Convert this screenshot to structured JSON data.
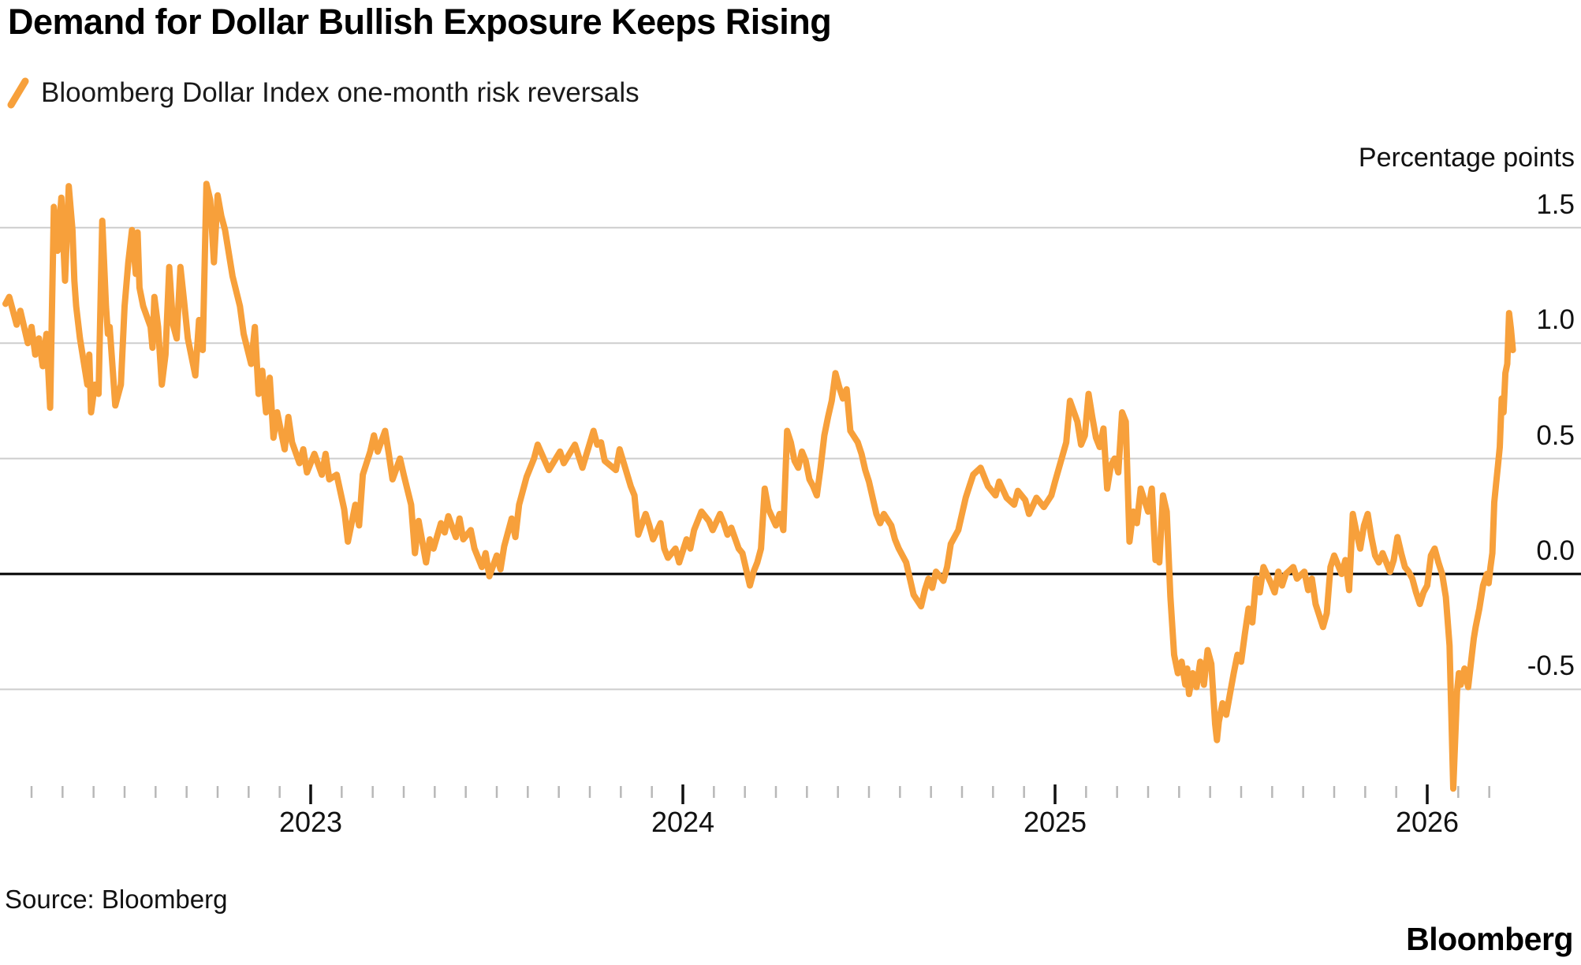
{
  "header": {
    "title": "Demand for Dollar Bullish Exposure Keeps Rising",
    "legend": {
      "label": "Bloomberg Dollar Index one-month risk reversals",
      "marker_color": "#F7A03B"
    }
  },
  "footer": {
    "source": "Source: Bloomberg",
    "brand": "Bloomberg"
  },
  "colors": {
    "line": "#F7A03B",
    "gridline": "#CDCDCD",
    "zero_line": "#000000",
    "minor_tick": "#B8B8B8",
    "major_tick": "#111111",
    "text": "#111111"
  },
  "chart_data": {
    "type": "line",
    "title": "Demand for Dollar Bullish Exposure Keeps Rising",
    "series_name": "Bloomberg Dollar Index one-month risk reversals",
    "ylabel": "Percentage points",
    "legend_position": "top-left",
    "grid": "horizontal",
    "x_axis": {
      "labels": [
        "2023",
        "2024",
        "2025",
        "2026"
      ],
      "major_ticks": [
        2023,
        2024,
        2025,
        2026
      ],
      "minor_tick_start": 2022.25,
      "minor_tick_end": 2026.167,
      "minor_ticks_per_year": 12,
      "range": [
        2022.17,
        2026.28
      ]
    },
    "y_axis": {
      "label": "Percentage points",
      "ticks": [
        1.5,
        1.0,
        0.5,
        0.0,
        -0.5
      ],
      "tick_labels": [
        "1.5",
        "1.0",
        "0.5",
        "0.0",
        "-0.5"
      ],
      "range": [
        -0.95,
        1.75
      ],
      "zero_line": true
    },
    "points": [
      [
        2022.18,
        1.17
      ],
      [
        2022.19,
        1.2
      ],
      [
        2022.21,
        1.08
      ],
      [
        2022.22,
        1.14
      ],
      [
        2022.24,
        1.0
      ],
      [
        2022.25,
        1.07
      ],
      [
        2022.26,
        0.95
      ],
      [
        2022.27,
        1.02
      ],
      [
        2022.28,
        0.9
      ],
      [
        2022.29,
        1.04
      ],
      [
        2022.3,
        0.72
      ],
      [
        2022.31,
        1.59
      ],
      [
        2022.32,
        1.4
      ],
      [
        2022.33,
        1.63
      ],
      [
        2022.335,
        1.45
      ],
      [
        2022.34,
        1.27
      ],
      [
        2022.35,
        1.68
      ],
      [
        2022.36,
        1.49
      ],
      [
        2022.365,
        1.27
      ],
      [
        2022.37,
        1.16
      ],
      [
        2022.38,
        1.02
      ],
      [
        2022.4,
        0.82
      ],
      [
        2022.405,
        0.95
      ],
      [
        2022.41,
        0.7
      ],
      [
        2022.42,
        0.82
      ],
      [
        2022.43,
        0.78
      ],
      [
        2022.44,
        1.53
      ],
      [
        2022.45,
        1.16
      ],
      [
        2022.455,
        1.04
      ],
      [
        2022.46,
        1.07
      ],
      [
        2022.475,
        0.73
      ],
      [
        2022.49,
        0.82
      ],
      [
        2022.5,
        1.16
      ],
      [
        2022.51,
        1.35
      ],
      [
        2022.52,
        1.49
      ],
      [
        2022.53,
        1.3
      ],
      [
        2022.535,
        1.48
      ],
      [
        2022.54,
        1.24
      ],
      [
        2022.55,
        1.16
      ],
      [
        2022.57,
        1.07
      ],
      [
        2022.575,
        0.98
      ],
      [
        2022.58,
        1.2
      ],
      [
        2022.59,
        1.07
      ],
      [
        2022.6,
        0.82
      ],
      [
        2022.61,
        0.95
      ],
      [
        2022.62,
        1.33
      ],
      [
        2022.63,
        1.08
      ],
      [
        2022.64,
        1.02
      ],
      [
        2022.65,
        1.33
      ],
      [
        2022.66,
        1.18
      ],
      [
        2022.67,
        1.02
      ],
      [
        2022.69,
        0.86
      ],
      [
        2022.7,
        1.1
      ],
      [
        2022.71,
        0.97
      ],
      [
        2022.72,
        1.69
      ],
      [
        2022.73,
        1.62
      ],
      [
        2022.74,
        1.35
      ],
      [
        2022.75,
        1.64
      ],
      [
        2022.76,
        1.55
      ],
      [
        2022.77,
        1.49
      ],
      [
        2022.79,
        1.29
      ],
      [
        2022.81,
        1.16
      ],
      [
        2022.82,
        1.04
      ],
      [
        2022.84,
        0.91
      ],
      [
        2022.85,
        1.07
      ],
      [
        2022.86,
        0.78
      ],
      [
        2022.87,
        0.88
      ],
      [
        2022.88,
        0.7
      ],
      [
        2022.89,
        0.85
      ],
      [
        2022.9,
        0.59
      ],
      [
        2022.91,
        0.7
      ],
      [
        2022.93,
        0.54
      ],
      [
        2022.94,
        0.68
      ],
      [
        2022.95,
        0.57
      ],
      [
        2022.97,
        0.48
      ],
      [
        2022.98,
        0.54
      ],
      [
        2022.99,
        0.44
      ],
      [
        2023.01,
        0.52
      ],
      [
        2023.03,
        0.43
      ],
      [
        2023.04,
        0.52
      ],
      [
        2023.05,
        0.41
      ],
      [
        2023.07,
        0.43
      ],
      [
        2023.09,
        0.28
      ],
      [
        2023.1,
        0.14
      ],
      [
        2023.12,
        0.3
      ],
      [
        2023.13,
        0.21
      ],
      [
        2023.14,
        0.43
      ],
      [
        2023.16,
        0.53
      ],
      [
        2023.17,
        0.6
      ],
      [
        2023.18,
        0.53
      ],
      [
        2023.2,
        0.62
      ],
      [
        2023.21,
        0.52
      ],
      [
        2023.22,
        0.41
      ],
      [
        2023.24,
        0.5
      ],
      [
        2023.25,
        0.43
      ],
      [
        2023.27,
        0.3
      ],
      [
        2023.28,
        0.09
      ],
      [
        2023.29,
        0.23
      ],
      [
        2023.31,
        0.05
      ],
      [
        2023.32,
        0.15
      ],
      [
        2023.33,
        0.11
      ],
      [
        2023.35,
        0.22
      ],
      [
        2023.36,
        0.18
      ],
      [
        2023.37,
        0.25
      ],
      [
        2023.39,
        0.16
      ],
      [
        2023.4,
        0.24
      ],
      [
        2023.41,
        0.15
      ],
      [
        2023.43,
        0.19
      ],
      [
        2023.44,
        0.11
      ],
      [
        2023.46,
        0.03
      ],
      [
        2023.47,
        0.09
      ],
      [
        2023.48,
        -0.01
      ],
      [
        2023.5,
        0.08
      ],
      [
        2023.51,
        0.02
      ],
      [
        2023.52,
        0.12
      ],
      [
        2023.54,
        0.24
      ],
      [
        2023.55,
        0.16
      ],
      [
        2023.56,
        0.3
      ],
      [
        2023.58,
        0.42
      ],
      [
        2023.6,
        0.5
      ],
      [
        2023.61,
        0.56
      ],
      [
        2023.64,
        0.45
      ],
      [
        2023.67,
        0.53
      ],
      [
        2023.68,
        0.48
      ],
      [
        2023.71,
        0.56
      ],
      [
        2023.73,
        0.46
      ],
      [
        2023.76,
        0.62
      ],
      [
        2023.77,
        0.56
      ],
      [
        2023.78,
        0.57
      ],
      [
        2023.79,
        0.49
      ],
      [
        2023.82,
        0.45
      ],
      [
        2023.83,
        0.54
      ],
      [
        2023.86,
        0.38
      ],
      [
        2023.87,
        0.34
      ],
      [
        2023.88,
        0.17
      ],
      [
        2023.9,
        0.26
      ],
      [
        2023.91,
        0.21
      ],
      [
        2023.92,
        0.15
      ],
      [
        2023.94,
        0.22
      ],
      [
        2023.95,
        0.11
      ],
      [
        2023.96,
        0.07
      ],
      [
        2023.98,
        0.11
      ],
      [
        2023.99,
        0.05
      ],
      [
        2024.01,
        0.15
      ],
      [
        2024.02,
        0.11
      ],
      [
        2024.03,
        0.19
      ],
      [
        2024.05,
        0.27
      ],
      [
        2024.07,
        0.23
      ],
      [
        2024.08,
        0.19
      ],
      [
        2024.1,
        0.26
      ],
      [
        2024.11,
        0.22
      ],
      [
        2024.12,
        0.17
      ],
      [
        2024.13,
        0.2
      ],
      [
        2024.15,
        0.11
      ],
      [
        2024.16,
        0.09
      ],
      [
        2024.18,
        -0.05
      ],
      [
        2024.19,
        0.01
      ],
      [
        2024.2,
        0.05
      ],
      [
        2024.21,
        0.11
      ],
      [
        2024.22,
        0.37
      ],
      [
        2024.23,
        0.28
      ],
      [
        2024.25,
        0.21
      ],
      [
        2024.26,
        0.26
      ],
      [
        2024.27,
        0.19
      ],
      [
        2024.28,
        0.62
      ],
      [
        2024.29,
        0.57
      ],
      [
        2024.3,
        0.49
      ],
      [
        2024.31,
        0.46
      ],
      [
        2024.32,
        0.53
      ],
      [
        2024.33,
        0.49
      ],
      [
        2024.34,
        0.41
      ],
      [
        2024.35,
        0.38
      ],
      [
        2024.36,
        0.34
      ],
      [
        2024.37,
        0.46
      ],
      [
        2024.38,
        0.6
      ],
      [
        2024.39,
        0.68
      ],
      [
        2024.4,
        0.75
      ],
      [
        2024.41,
        0.87
      ],
      [
        2024.42,
        0.81
      ],
      [
        2024.43,
        0.76
      ],
      [
        2024.44,
        0.8
      ],
      [
        2024.45,
        0.62
      ],
      [
        2024.47,
        0.57
      ],
      [
        2024.48,
        0.52
      ],
      [
        2024.49,
        0.45
      ],
      [
        2024.5,
        0.4
      ],
      [
        2024.51,
        0.33
      ],
      [
        2024.52,
        0.26
      ],
      [
        2024.53,
        0.22
      ],
      [
        2024.54,
        0.26
      ],
      [
        2024.56,
        0.21
      ],
      [
        2024.57,
        0.15
      ],
      [
        2024.58,
        0.11
      ],
      [
        2024.6,
        0.05
      ],
      [
        2024.61,
        -0.02
      ],
      [
        2024.62,
        -0.09
      ],
      [
        2024.64,
        -0.14
      ],
      [
        2024.65,
        -0.07
      ],
      [
        2024.66,
        -0.02
      ],
      [
        2024.67,
        -0.06
      ],
      [
        2024.68,
        0.01
      ],
      [
        2024.7,
        -0.03
      ],
      [
        2024.71,
        0.03
      ],
      [
        2024.72,
        0.13
      ],
      [
        2024.74,
        0.19
      ],
      [
        2024.75,
        0.26
      ],
      [
        2024.76,
        0.33
      ],
      [
        2024.77,
        0.38
      ],
      [
        2024.78,
        0.43
      ],
      [
        2024.8,
        0.46
      ],
      [
        2024.81,
        0.42
      ],
      [
        2024.82,
        0.38
      ],
      [
        2024.84,
        0.34
      ],
      [
        2024.85,
        0.4
      ],
      [
        2024.87,
        0.33
      ],
      [
        2024.89,
        0.3
      ],
      [
        2024.9,
        0.36
      ],
      [
        2024.92,
        0.32
      ],
      [
        2024.93,
        0.26
      ],
      [
        2024.95,
        0.33
      ],
      [
        2024.97,
        0.29
      ],
      [
        2024.99,
        0.34
      ],
      [
        2025.0,
        0.4
      ],
      [
        2025.03,
        0.57
      ],
      [
        2025.04,
        0.75
      ],
      [
        2025.06,
        0.66
      ],
      [
        2025.07,
        0.56
      ],
      [
        2025.08,
        0.6
      ],
      [
        2025.09,
        0.78
      ],
      [
        2025.1,
        0.68
      ],
      [
        2025.11,
        0.59
      ],
      [
        2025.12,
        0.55
      ],
      [
        2025.13,
        0.63
      ],
      [
        2025.14,
        0.37
      ],
      [
        2025.15,
        0.47
      ],
      [
        2025.16,
        0.5
      ],
      [
        2025.17,
        0.44
      ],
      [
        2025.18,
        0.7
      ],
      [
        2025.19,
        0.66
      ],
      [
        2025.2,
        0.14
      ],
      [
        2025.21,
        0.27
      ],
      [
        2025.22,
        0.22
      ],
      [
        2025.23,
        0.37
      ],
      [
        2025.24,
        0.32
      ],
      [
        2025.25,
        0.27
      ],
      [
        2025.26,
        0.37
      ],
      [
        2025.27,
        0.06
      ],
      [
        2025.275,
        0.11
      ],
      [
        2025.28,
        0.05
      ],
      [
        2025.29,
        0.34
      ],
      [
        2025.3,
        0.27
      ],
      [
        2025.31,
        -0.1
      ],
      [
        2025.32,
        -0.35
      ],
      [
        2025.33,
        -0.43
      ],
      [
        2025.34,
        -0.38
      ],
      [
        2025.35,
        -0.48
      ],
      [
        2025.355,
        -0.41
      ],
      [
        2025.36,
        -0.52
      ],
      [
        2025.37,
        -0.43
      ],
      [
        2025.38,
        -0.49
      ],
      [
        2025.39,
        -0.38
      ],
      [
        2025.4,
        -0.48
      ],
      [
        2025.41,
        -0.33
      ],
      [
        2025.42,
        -0.39
      ],
      [
        2025.43,
        -0.65
      ],
      [
        2025.435,
        -0.72
      ],
      [
        2025.44,
        -0.64
      ],
      [
        2025.45,
        -0.56
      ],
      [
        2025.46,
        -0.61
      ],
      [
        2025.47,
        -0.52
      ],
      [
        2025.48,
        -0.43
      ],
      [
        2025.49,
        -0.35
      ],
      [
        2025.5,
        -0.38
      ],
      [
        2025.51,
        -0.26
      ],
      [
        2025.52,
        -0.15
      ],
      [
        2025.53,
        -0.21
      ],
      [
        2025.535,
        -0.12
      ],
      [
        2025.54,
        -0.02
      ],
      [
        2025.55,
        -0.08
      ],
      [
        2025.56,
        0.03
      ],
      [
        2025.58,
        -0.04
      ],
      [
        2025.59,
        -0.08
      ],
      [
        2025.6,
        0.01
      ],
      [
        2025.61,
        -0.05
      ],
      [
        2025.62,
        0.0
      ],
      [
        2025.64,
        0.03
      ],
      [
        2025.65,
        -0.02
      ],
      [
        2025.67,
        0.01
      ],
      [
        2025.68,
        -0.07
      ],
      [
        2025.69,
        -0.02
      ],
      [
        2025.7,
        -0.13
      ],
      [
        2025.72,
        -0.23
      ],
      [
        2025.73,
        -0.17
      ],
      [
        2025.74,
        0.03
      ],
      [
        2025.75,
        0.08
      ],
      [
        2025.77,
        0.0
      ],
      [
        2025.78,
        0.06
      ],
      [
        2025.79,
        -0.07
      ],
      [
        2025.8,
        0.26
      ],
      [
        2025.81,
        0.18
      ],
      [
        2025.82,
        0.11
      ],
      [
        2025.83,
        0.21
      ],
      [
        2025.84,
        0.26
      ],
      [
        2025.85,
        0.16
      ],
      [
        2025.86,
        0.08
      ],
      [
        2025.87,
        0.05
      ],
      [
        2025.88,
        0.09
      ],
      [
        2025.9,
        0.01
      ],
      [
        2025.91,
        0.06
      ],
      [
        2025.92,
        0.16
      ],
      [
        2025.93,
        0.09
      ],
      [
        2025.94,
        0.03
      ],
      [
        2025.95,
        0.01
      ],
      [
        2025.96,
        -0.02
      ],
      [
        2025.97,
        -0.08
      ],
      [
        2025.98,
        -0.13
      ],
      [
        2025.99,
        -0.08
      ],
      [
        2026.0,
        -0.05
      ],
      [
        2026.01,
        0.08
      ],
      [
        2026.02,
        0.11
      ],
      [
        2026.03,
        0.05
      ],
      [
        2026.04,
        0.0
      ],
      [
        2026.05,
        -0.1
      ],
      [
        2026.06,
        -0.31
      ],
      [
        2026.07,
        -0.93
      ],
      [
        2026.08,
        -0.51
      ],
      [
        2026.085,
        -0.43
      ],
      [
        2026.09,
        -0.48
      ],
      [
        2026.1,
        -0.41
      ],
      [
        2026.11,
        -0.49
      ],
      [
        2026.12,
        -0.35
      ],
      [
        2026.125,
        -0.28
      ],
      [
        2026.13,
        -0.23
      ],
      [
        2026.14,
        -0.15
      ],
      [
        2026.15,
        -0.05
      ],
      [
        2026.16,
        0.0
      ],
      [
        2026.165,
        -0.04
      ],
      [
        2026.17,
        0.03
      ],
      [
        2026.175,
        0.09
      ],
      [
        2026.18,
        0.31
      ],
      [
        2026.185,
        0.39
      ],
      [
        2026.19,
        0.47
      ],
      [
        2026.195,
        0.55
      ],
      [
        2026.2,
        0.76
      ],
      [
        2026.205,
        0.7
      ],
      [
        2026.21,
        0.87
      ],
      [
        2026.215,
        0.91
      ],
      [
        2026.22,
        1.13
      ],
      [
        2026.225,
        1.06
      ],
      [
        2026.23,
        0.97
      ]
    ]
  }
}
